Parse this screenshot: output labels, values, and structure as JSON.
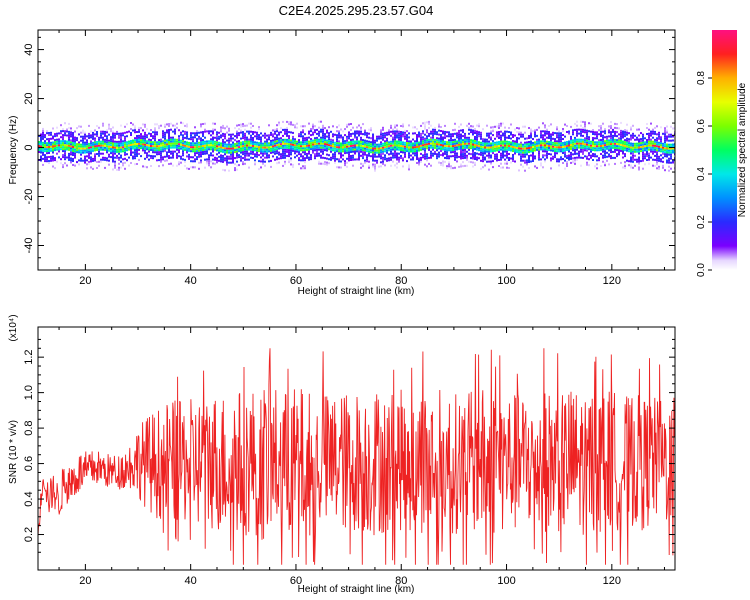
{
  "figure": {
    "title": "C2E4.2025.295.23.57.G04"
  },
  "chart_data": [
    {
      "type": "heatmap",
      "xlabel": "Height of straight line (km)",
      "ylabel": "Frequency (Hz)",
      "xlim": [
        11,
        132
      ],
      "ylim": [
        -50,
        48
      ],
      "xticks": [
        20,
        40,
        60,
        80,
        100,
        120
      ],
      "yticks": [
        -40,
        -20,
        0,
        20,
        40
      ],
      "colorbar": {
        "label": "Normalized spectral amplitude",
        "range": [
          0.0,
          1.0
        ],
        "ticks": [
          0.0,
          0.2,
          0.4,
          0.6,
          0.8
        ],
        "colormap": "rainbow (violet-blue-cyan-green-yellow-red-magenta)"
      },
      "band": {
        "center_hz": 1,
        "core_halfwidth_hz": 2,
        "scatter_halfwidth_hz": 6,
        "peak_amplitude": 0.9
      },
      "grid": false
    },
    {
      "type": "line",
      "xlabel": "Height of straight line (km)",
      "ylabel": "SNR (10 * v/v)",
      "scale_label": "(x10⁴)",
      "xlim": [
        11,
        132
      ],
      "ylim": [
        0,
        1.37
      ],
      "xticks": [
        20,
        40,
        60,
        80,
        100,
        120
      ],
      "yticks": [
        0.2,
        0.4,
        0.6,
        0.8,
        1.0,
        1.2
      ],
      "color": "#ee2222",
      "series": [
        {
          "x": [
            11,
            12,
            13,
            14,
            15,
            16,
            17,
            18,
            19,
            20,
            22,
            24,
            26,
            28,
            30,
            32,
            34,
            36,
            38,
            40,
            42,
            44,
            46,
            48,
            50,
            52,
            54,
            56,
            58,
            60,
            62,
            64,
            66,
            68,
            70,
            72,
            74,
            76,
            78,
            80,
            82,
            84,
            86,
            88,
            90,
            92,
            94,
            96,
            98,
            100,
            102,
            104,
            106,
            108,
            110,
            112,
            114,
            116,
            118,
            120,
            122,
            124,
            126,
            128,
            130,
            132
          ],
          "y": [
            0.2,
            0.55,
            0.4,
            0.45,
            0.38,
            0.5,
            0.48,
            0.52,
            0.55,
            0.55,
            0.58,
            0.56,
            0.55,
            0.58,
            0.62,
            0.6,
            0.6,
            0.62,
            0.6,
            0.62,
            0.6,
            0.62,
            0.6,
            0.62,
            0.6,
            0.62,
            0.6,
            0.62,
            0.6,
            0.62,
            0.6,
            0.62,
            0.6,
            0.62,
            0.6,
            0.62,
            0.6,
            0.62,
            0.6,
            0.62,
            0.6,
            0.62,
            0.6,
            0.62,
            0.6,
            0.62,
            0.6,
            0.62,
            0.6,
            0.62,
            0.6,
            0.62,
            0.6,
            0.62,
            0.6,
            0.62,
            0.6,
            0.62,
            0.6,
            0.62,
            0.6,
            0.62,
            0.6,
            0.62,
            0.6,
            0.62
          ],
          "fluctuation": [
            0.05,
            0.08,
            0.1,
            0.1,
            0.1,
            0.12,
            0.12,
            0.12,
            0.12,
            0.12,
            0.1,
            0.1,
            0.1,
            0.12,
            0.2,
            0.28,
            0.32,
            0.35,
            0.35,
            0.35,
            0.38,
            0.4,
            0.4,
            0.42,
            0.42,
            0.42,
            0.45,
            0.42,
            0.42,
            0.42,
            0.42,
            0.4,
            0.4,
            0.4,
            0.4,
            0.4,
            0.42,
            0.42,
            0.42,
            0.4,
            0.4,
            0.42,
            0.42,
            0.42,
            0.4,
            0.4,
            0.4,
            0.42,
            0.42,
            0.4,
            0.4,
            0.4,
            0.4,
            0.4,
            0.4,
            0.42,
            0.42,
            0.4,
            0.4,
            0.4,
            0.38,
            0.38,
            0.38,
            0.36,
            0.36,
            0.36
          ]
        }
      ],
      "grid": false
    }
  ]
}
